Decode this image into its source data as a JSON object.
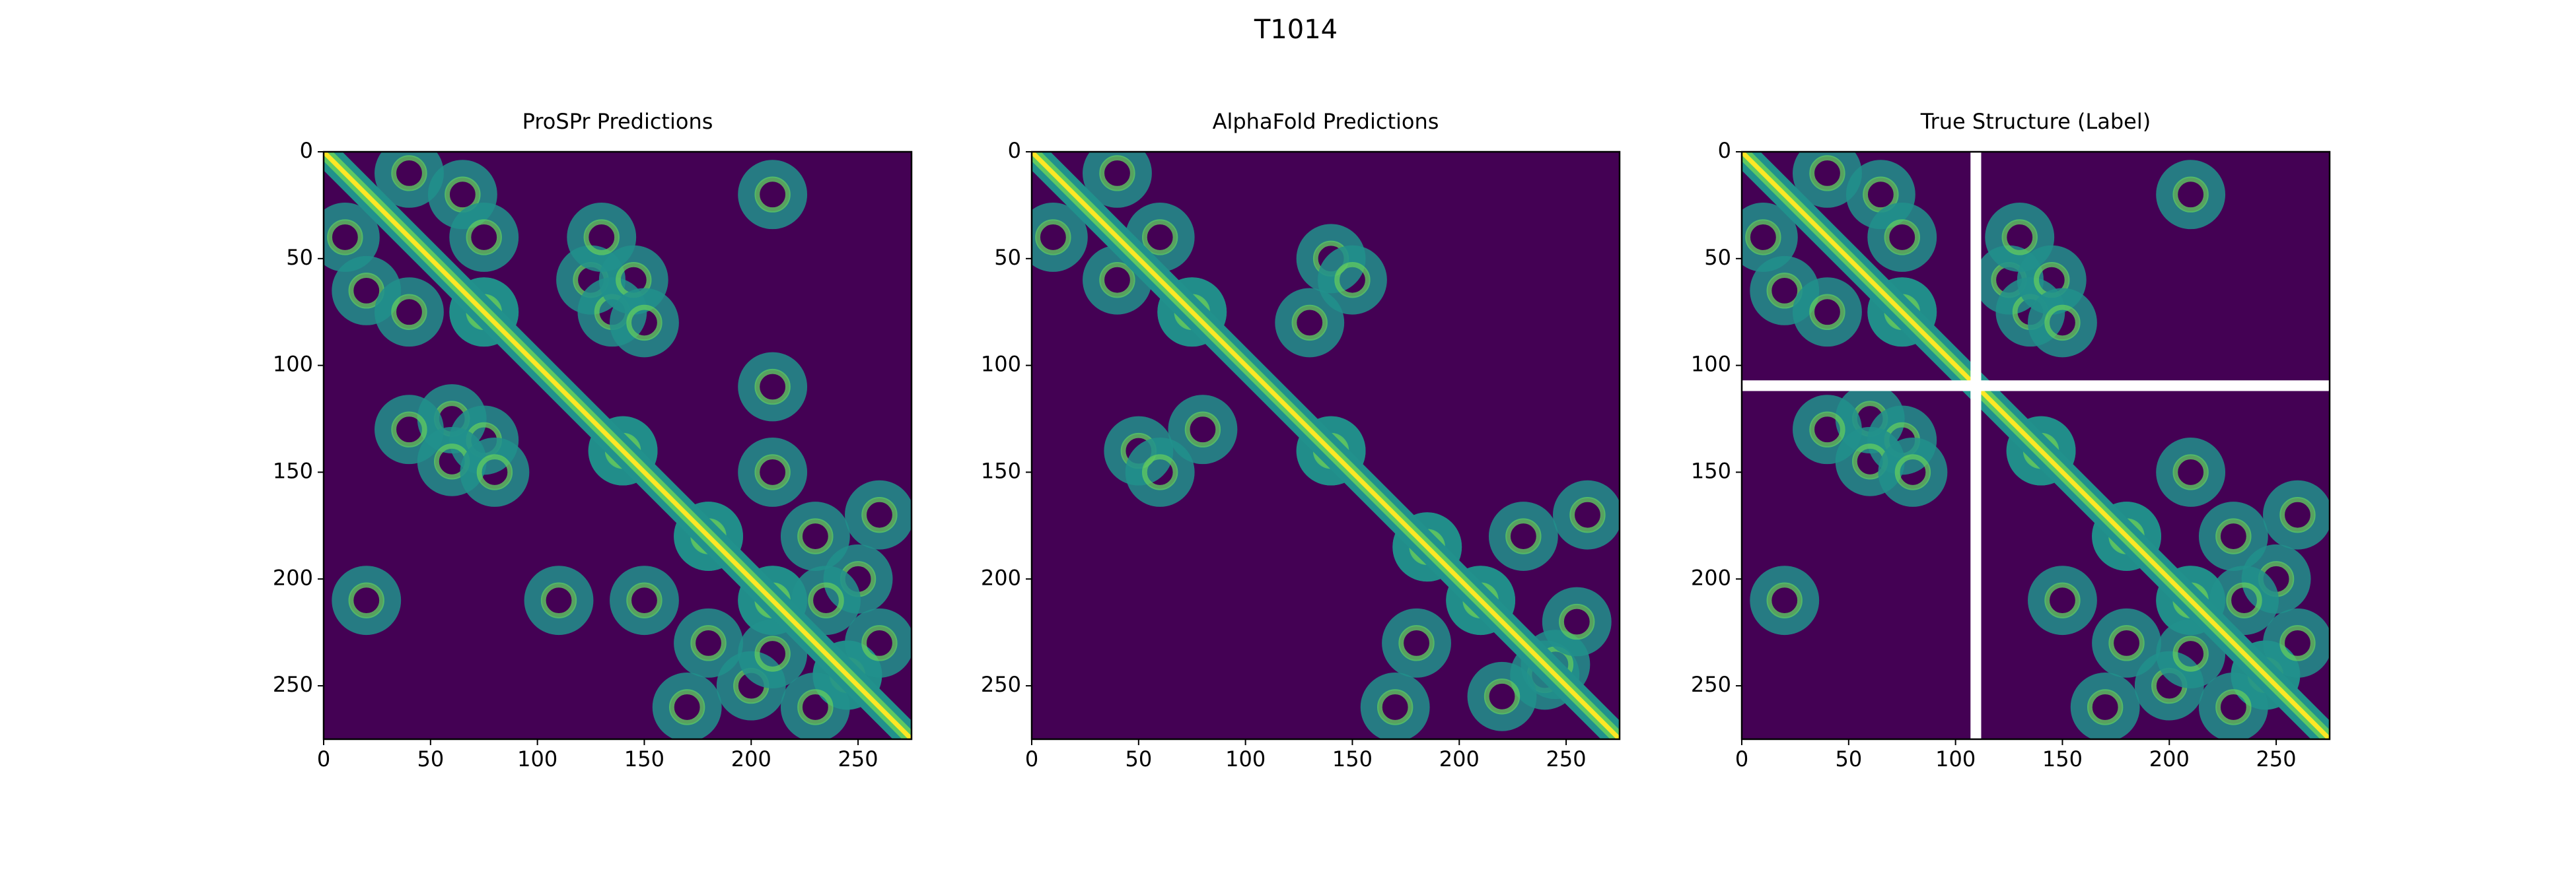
{
  "title": "T1014",
  "chart_data": [
    {
      "type": "heatmap",
      "title": "ProSPr Predictions",
      "colormap": "viridis",
      "xlim": [
        0,
        275
      ],
      "ylim": [
        275,
        0
      ],
      "xticks": [
        0,
        50,
        100,
        150,
        200,
        250
      ],
      "yticks": [
        0,
        50,
        100,
        150,
        200,
        250
      ],
      "contacts": [
        [
          75,
          75
        ],
        [
          140,
          140
        ],
        [
          180,
          180
        ],
        [
          210,
          210
        ],
        [
          245,
          245
        ],
        [
          10,
          40
        ],
        [
          20,
          65
        ],
        [
          40,
          75
        ],
        [
          60,
          125
        ],
        [
          75,
          135
        ],
        [
          40,
          130
        ],
        [
          60,
          145
        ],
        [
          80,
          150
        ],
        [
          20,
          210
        ],
        [
          110,
          210
        ],
        [
          150,
          210
        ],
        [
          180,
          230
        ],
        [
          200,
          250
        ],
        [
          170,
          260
        ],
        [
          230,
          260
        ],
        [
          210,
          235
        ]
      ]
    },
    {
      "type": "heatmap",
      "title": "AlphaFold Predictions",
      "colormap": "viridis",
      "xlim": [
        0,
        275
      ],
      "ylim": [
        275,
        0
      ],
      "xticks": [
        0,
        50,
        100,
        150,
        200,
        250
      ],
      "yticks": [
        0,
        50,
        100,
        150,
        200,
        250
      ],
      "contacts": [
        [
          75,
          75
        ],
        [
          140,
          140
        ],
        [
          185,
          185
        ],
        [
          210,
          210
        ],
        [
          240,
          245
        ],
        [
          40,
          60
        ],
        [
          10,
          40
        ],
        [
          80,
          130
        ],
        [
          50,
          140
        ],
        [
          60,
          150
        ],
        [
          180,
          230
        ],
        [
          170,
          260
        ],
        [
          220,
          255
        ]
      ]
    },
    {
      "type": "heatmap",
      "title": "True Structure (Label)",
      "colormap": "viridis",
      "xlim": [
        0,
        275
      ],
      "ylim": [
        275,
        0
      ],
      "xticks": [
        0,
        50,
        100,
        150,
        200,
        250
      ],
      "yticks": [
        0,
        50,
        100,
        150,
        200,
        250
      ],
      "mask": [
        107,
        112
      ],
      "contacts": [
        [
          75,
          75
        ],
        [
          140,
          140
        ],
        [
          180,
          180
        ],
        [
          210,
          210
        ],
        [
          245,
          245
        ],
        [
          10,
          40
        ],
        [
          20,
          65
        ],
        [
          40,
          75
        ],
        [
          60,
          125
        ],
        [
          75,
          135
        ],
        [
          40,
          130
        ],
        [
          60,
          145
        ],
        [
          80,
          150
        ],
        [
          20,
          210
        ],
        [
          150,
          210
        ],
        [
          180,
          230
        ],
        [
          200,
          250
        ],
        [
          170,
          260
        ],
        [
          230,
          260
        ],
        [
          210,
          235
        ]
      ]
    }
  ]
}
